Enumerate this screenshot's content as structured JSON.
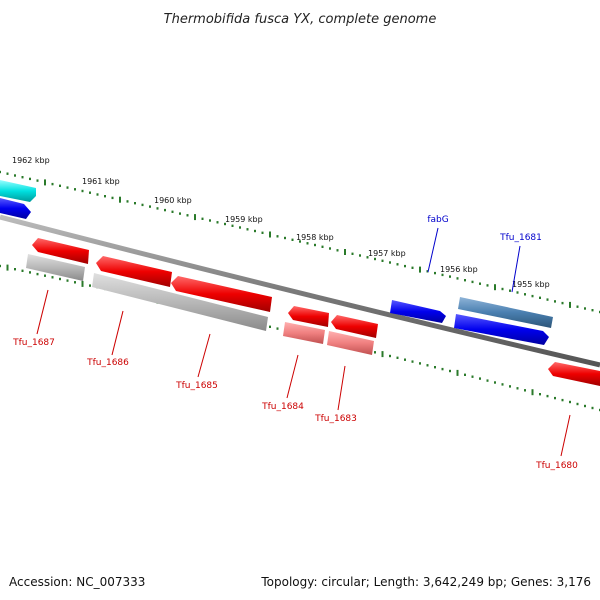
{
  "title": "Thermobifida fusca YX, complete genome",
  "footer": {
    "accession": "Accession: NC_007333",
    "summary": "Topology: circular; Length: 3,642,249 bp; Genes: 3,176"
  },
  "colors": {
    "backbone": "#7a7a7a",
    "tick": "#2a7a2a",
    "forward_gene": "#0000ee",
    "reverse_gene": "#ee0000",
    "cds_forward": "#ff8080",
    "pseudogene": "#aaaaaa",
    "rna": "#00e0e0",
    "highlight": "#4a7fb0",
    "label_forward": "#0000cc",
    "label_reverse": "#cc0000"
  },
  "ticks": [
    {
      "label": "1962 kbp"
    },
    {
      "label": "1961 kbp"
    },
    {
      "label": "1960 kbp"
    },
    {
      "label": "1959 kbp"
    },
    {
      "label": "1958 kbp"
    },
    {
      "label": "1957 kbp"
    },
    {
      "label": "1956 kbp"
    },
    {
      "label": "1955 kbp"
    }
  ],
  "genes": [
    {
      "label": "fabG",
      "strand": "forward"
    },
    {
      "label": "Tfu_1681",
      "strand": "forward"
    },
    {
      "label": "Tfu_1687",
      "strand": "reverse"
    },
    {
      "label": "Tfu_1686",
      "strand": "reverse"
    },
    {
      "label": "Tfu_1685",
      "strand": "reverse"
    },
    {
      "label": "Tfu_1684",
      "strand": "reverse"
    },
    {
      "label": "Tfu_1683",
      "strand": "reverse"
    },
    {
      "label": "Tfu_1680",
      "strand": "reverse"
    }
  ]
}
